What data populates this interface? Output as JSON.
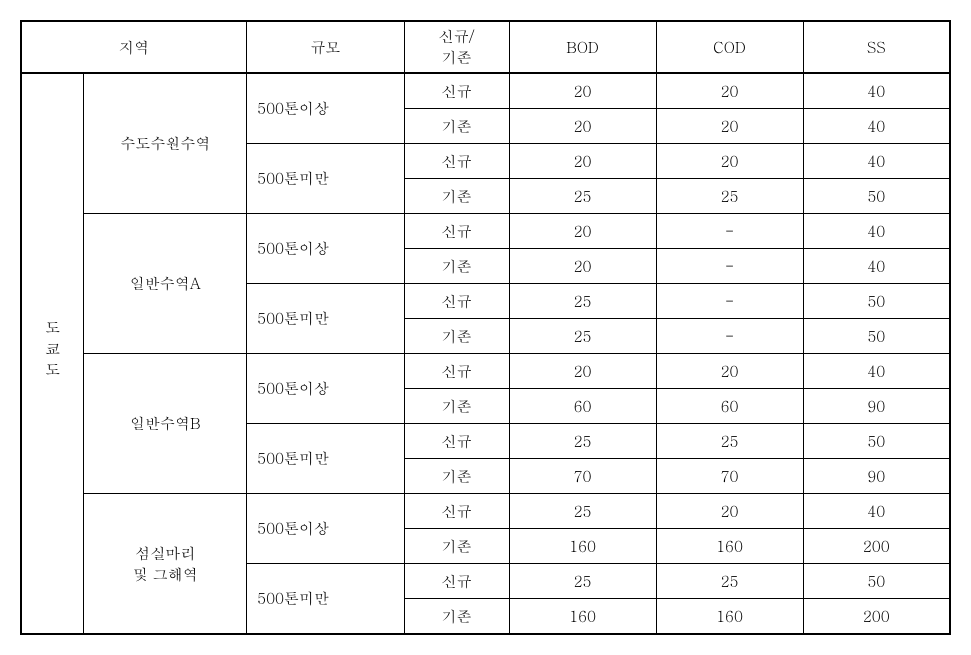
{
  "headers": {
    "region": "지역",
    "scale": "규모",
    "type": "신규/\n기존",
    "bod": "BOD",
    "cod": "COD",
    "ss": "SS"
  },
  "region_label": "도쿄도",
  "areas": [
    {
      "name": "수도수원수역",
      "scales": [
        {
          "label": "500톤이상",
          "rows": [
            {
              "type": "신규",
              "bod": "20",
              "cod": "20",
              "ss": "40"
            },
            {
              "type": "기존",
              "bod": "20",
              "cod": "20",
              "ss": "40"
            }
          ]
        },
        {
          "label": "500톤미만",
          "rows": [
            {
              "type": "신규",
              "bod": "20",
              "cod": "20",
              "ss": "40"
            },
            {
              "type": "기존",
              "bod": "25",
              "cod": "25",
              "ss": "50"
            }
          ]
        }
      ]
    },
    {
      "name": "일반수역A",
      "scales": [
        {
          "label": "500톤이상",
          "rows": [
            {
              "type": "신규",
              "bod": "20",
              "cod": "-",
              "ss": "40"
            },
            {
              "type": "기존",
              "bod": "20",
              "cod": "-",
              "ss": "40"
            }
          ]
        },
        {
          "label": "500톤미만",
          "rows": [
            {
              "type": "신규",
              "bod": "25",
              "cod": "-",
              "ss": "50"
            },
            {
              "type": "기존",
              "bod": "25",
              "cod": "-",
              "ss": "50"
            }
          ]
        }
      ]
    },
    {
      "name": "일반수역B",
      "scales": [
        {
          "label": "500톤이상",
          "rows": [
            {
              "type": "신규",
              "bod": "20",
              "cod": "20",
              "ss": "40"
            },
            {
              "type": "기존",
              "bod": "60",
              "cod": "60",
              "ss": "90"
            }
          ]
        },
        {
          "label": "500톤미만",
          "rows": [
            {
              "type": "신규",
              "bod": "25",
              "cod": "25",
              "ss": "50"
            },
            {
              "type": "기존",
              "bod": "70",
              "cod": "70",
              "ss": "90"
            }
          ]
        }
      ]
    },
    {
      "name": "섬실마리\n및  그해역",
      "scales": [
        {
          "label": "500톤이상",
          "rows": [
            {
              "type": "신규",
              "bod": "25",
              "cod": "20",
              "ss": "40"
            },
            {
              "type": "기존",
              "bod": "160",
              "cod": "160",
              "ss": "200"
            }
          ]
        },
        {
          "label": "500톤미만",
          "rows": [
            {
              "type": "신규",
              "bod": "25",
              "cod": "25",
              "ss": "50"
            },
            {
              "type": "기존",
              "bod": "160",
              "cod": "160",
              "ss": "200"
            }
          ]
        }
      ]
    }
  ]
}
